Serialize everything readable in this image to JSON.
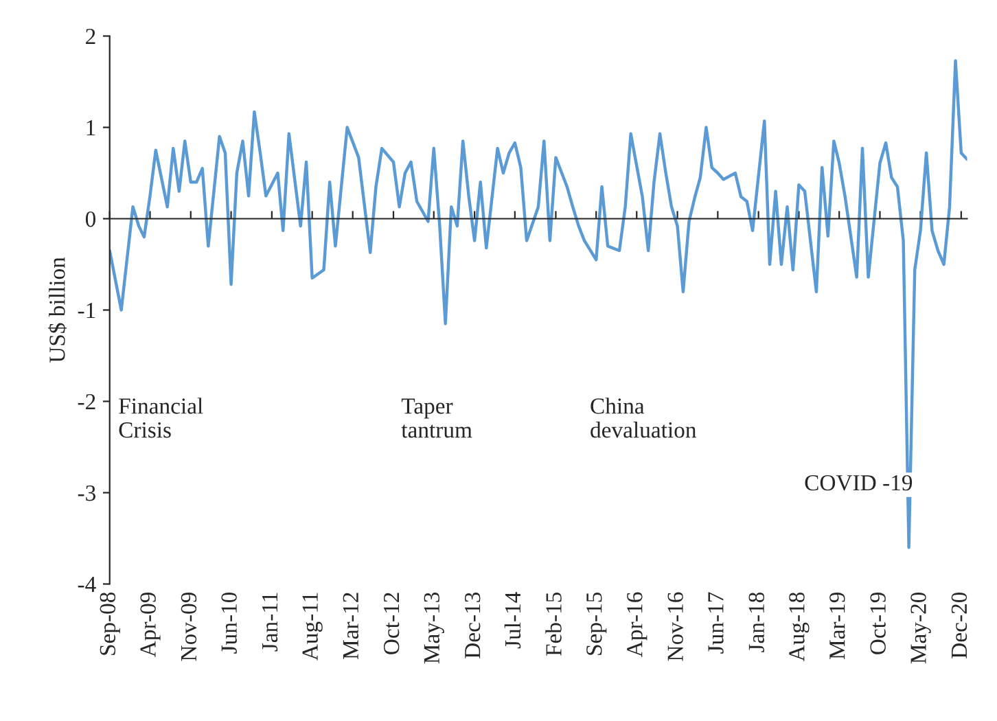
{
  "chart_data": {
    "type": "line",
    "ylabel": "US$ billion",
    "x": [
      "2008-09",
      "2008-11",
      "2009-01",
      "2009-02",
      "2009-03",
      "2009-04",
      "2009-05",
      "2009-07",
      "2009-08",
      "2009-09",
      "2009-10",
      "2009-11",
      "2009-12",
      "2010-01",
      "2010-02",
      "2010-04",
      "2010-05",
      "2010-06",
      "2010-07",
      "2010-08",
      "2010-09",
      "2010-10",
      "2010-11",
      "2010-12",
      "2011-02",
      "2011-03",
      "2011-04",
      "2011-06",
      "2011-07",
      "2011-08",
      "2011-10",
      "2011-11",
      "2011-12",
      "2012-02",
      "2012-04",
      "2012-06",
      "2012-07",
      "2012-08",
      "2012-10",
      "2012-11",
      "2012-12",
      "2013-01",
      "2013-02",
      "2013-04",
      "2013-05",
      "2013-06",
      "2013-07",
      "2013-08",
      "2013-09",
      "2013-10",
      "2013-11",
      "2013-12",
      "2014-01",
      "2014-02",
      "2014-04",
      "2014-05",
      "2014-06",
      "2014-07",
      "2014-08",
      "2014-09",
      "2014-11",
      "2014-12",
      "2015-01",
      "2015-02",
      "2015-04",
      "2015-05",
      "2015-06",
      "2015-07",
      "2015-09",
      "2015-10",
      "2015-11",
      "2016-01",
      "2016-02",
      "2016-03",
      "2016-05",
      "2016-06",
      "2016-07",
      "2016-08",
      "2016-09",
      "2016-10",
      "2016-11",
      "2016-12",
      "2017-01",
      "2017-02",
      "2017-03",
      "2017-04",
      "2017-05",
      "2017-06",
      "2017-07",
      "2017-09",
      "2017-10",
      "2017-11",
      "2017-12",
      "2018-02",
      "2018-03",
      "2018-04",
      "2018-05",
      "2018-06",
      "2018-07",
      "2018-08",
      "2018-09",
      "2018-11",
      "2018-12",
      "2019-01",
      "2019-02",
      "2019-03",
      "2019-04",
      "2019-06",
      "2019-07",
      "2019-08",
      "2019-10",
      "2019-11",
      "2019-12",
      "2020-01",
      "2020-02",
      "2020-03",
      "2020-04",
      "2020-05",
      "2020-06",
      "2020-07",
      "2020-08",
      "2020-09",
      "2020-10",
      "2020-11",
      "2020-12",
      "2021-01"
    ],
    "series": [
      {
        "color": "#5b9bd5",
        "values": [
          -0.35,
          -1.0,
          0.13,
          -0.08,
          -0.2,
          0.25,
          0.75,
          0.13,
          0.77,
          0.3,
          0.85,
          0.4,
          0.4,
          0.55,
          -0.3,
          0.9,
          0.72,
          -0.72,
          0.5,
          0.85,
          0.25,
          1.17,
          0.72,
          0.25,
          0.5,
          -0.13,
          0.93,
          -0.08,
          0.62,
          -0.65,
          -0.56,
          0.4,
          -0.3,
          1.0,
          0.67,
          -0.37,
          0.35,
          0.77,
          0.62,
          0.13,
          0.5,
          0.62,
          0.19,
          -0.03,
          0.77,
          -0.08,
          -1.15,
          0.13,
          -0.08,
          0.85,
          0.24,
          -0.24,
          0.4,
          -0.32,
          0.77,
          0.5,
          0.72,
          0.83,
          0.56,
          -0.24,
          0.13,
          0.85,
          -0.24,
          0.67,
          0.35,
          0.13,
          -0.08,
          -0.24,
          -0.45,
          0.35,
          -0.3,
          -0.35,
          0.13,
          0.93,
          0.24,
          -0.35,
          0.4,
          0.93,
          0.5,
          0.13,
          -0.08,
          -0.8,
          -0.03,
          0.24,
          0.45,
          1.0,
          0.56,
          0.5,
          0.43,
          0.5,
          0.24,
          0.19,
          -0.13,
          1.07,
          -0.5,
          0.3,
          -0.5,
          0.13,
          -0.56,
          0.37,
          0.3,
          -0.8,
          0.56,
          -0.19,
          0.85,
          0.61,
          0.24,
          -0.64,
          0.77,
          -0.64,
          0.61,
          0.83,
          0.45,
          0.35,
          -0.24,
          -3.6,
          -0.56,
          -0.13,
          0.72,
          -0.13,
          -0.35,
          -0.5,
          0.13,
          1.73,
          0.72,
          0.65
        ]
      }
    ],
    "xlim": [
      "2008-09",
      "2021-01"
    ],
    "xticks": [
      {
        "value": "2008-09",
        "label": "Sep-08"
      },
      {
        "value": "2009-04",
        "label": "Apr-09"
      },
      {
        "value": "2009-11",
        "label": "Nov-09"
      },
      {
        "value": "2010-06",
        "label": "Jun-10"
      },
      {
        "value": "2011-01",
        "label": "Jan-11"
      },
      {
        "value": "2011-08",
        "label": "Aug-11"
      },
      {
        "value": "2012-03",
        "label": "Mar-12"
      },
      {
        "value": "2012-10",
        "label": "Oct-12"
      },
      {
        "value": "2013-05",
        "label": "May-13"
      },
      {
        "value": "2013-12",
        "label": "Dec-13"
      },
      {
        "value": "2014-07",
        "label": "Jul-14"
      },
      {
        "value": "2015-02",
        "label": "Feb-15"
      },
      {
        "value": "2015-09",
        "label": "Sep-15"
      },
      {
        "value": "2016-04",
        "label": "Apr-16"
      },
      {
        "value": "2016-11",
        "label": "Nov-16"
      },
      {
        "value": "2017-06",
        "label": "Jun-17"
      },
      {
        "value": "2018-01",
        "label": "Jan-18"
      },
      {
        "value": "2018-08",
        "label": "Aug-18"
      },
      {
        "value": "2019-03",
        "label": "Mar-19"
      },
      {
        "value": "2019-10",
        "label": "Oct-19"
      },
      {
        "value": "2020-05",
        "label": "May-20"
      },
      {
        "value": "2020-12",
        "label": "Dec-20"
      }
    ],
    "ylim": [
      -4,
      2
    ],
    "yticks": [
      -4,
      -3,
      -2,
      -1,
      0,
      1,
      2
    ],
    "annotations": [
      "Financial\nCrisis",
      "Taper\ntantrum",
      "China\ndevaluation",
      "COVID -19"
    ],
    "marker": "none",
    "line_style": "solid"
  }
}
